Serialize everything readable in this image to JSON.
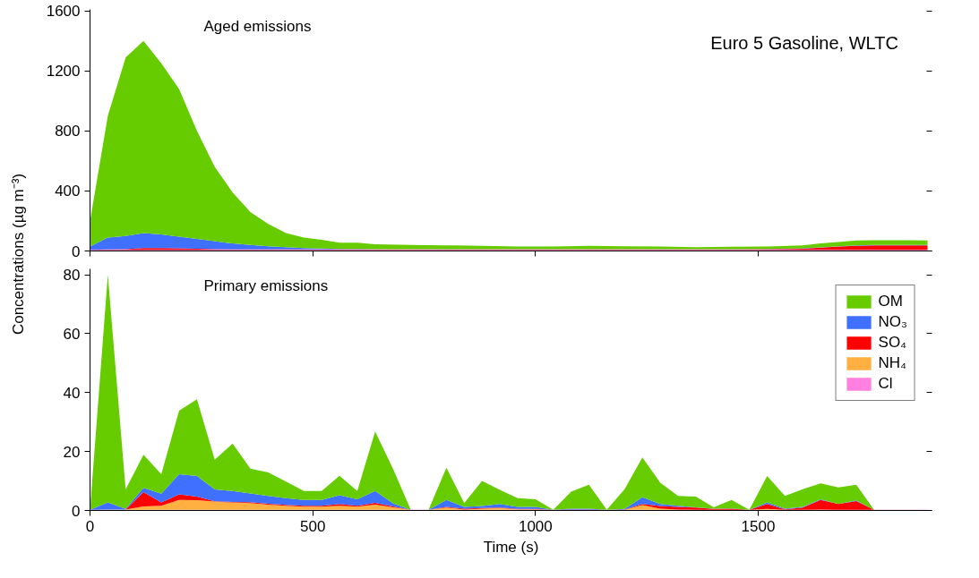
{
  "chart_data": [
    {
      "type": "area",
      "stacked": true,
      "ylabel": "Concentrations (µg m⁻³)",
      "tick_labels": "y",
      "legend": false,
      "grid": false,
      "x": [
        0,
        40,
        80,
        120,
        160,
        200,
        240,
        280,
        320,
        360,
        400,
        440,
        480,
        520,
        560,
        600,
        640,
        720,
        800,
        880,
        960,
        1040,
        1120,
        1200,
        1280,
        1360,
        1440,
        1520,
        1600,
        1640,
        1680,
        1720,
        1760,
        1800,
        1880
      ],
      "xlim": [
        0,
        1890
      ],
      "xticks": [
        0,
        500,
        1000,
        1500
      ],
      "ylim": [
        0,
        1610
      ],
      "yticks": [
        0,
        400,
        800,
        1200,
        1600
      ],
      "annotations": [
        "Aged emissions",
        "Euro 5 Gasoline, WLTC"
      ],
      "series": [
        {
          "color": "#ff80e0",
          "values": [
            8,
            8,
            8,
            8,
            8,
            8,
            8,
            8,
            8,
            8,
            8,
            8,
            8,
            8,
            8,
            8,
            8,
            8,
            8,
            8,
            8,
            8,
            8,
            8,
            8,
            8,
            8,
            8,
            8,
            8,
            8,
            8,
            8,
            8,
            8
          ]
        },
        {
          "color": "#ff0000",
          "values": [
            0,
            2,
            4,
            12,
            12,
            10,
            7,
            4,
            2,
            2,
            2,
            2,
            2,
            2,
            2,
            2,
            2,
            2,
            2,
            2,
            2,
            2,
            2,
            2,
            2,
            2,
            2,
            4,
            7,
            14,
            22,
            27,
            30,
            30,
            30
          ]
        },
        {
          "color": "#4070ff",
          "values": [
            22,
            80,
            88,
            100,
            90,
            77,
            65,
            53,
            40,
            30,
            22,
            15,
            10,
            6,
            4,
            3,
            2,
            2,
            2,
            2,
            2,
            2,
            2,
            2,
            2,
            2,
            2,
            2,
            3,
            2,
            2,
            2,
            2,
            2,
            2
          ]
        },
        {
          "color": "#66cc00",
          "values": [
            170,
            810,
            1190,
            1280,
            1140,
            985,
            720,
            495,
            340,
            220,
            148,
            95,
            70,
            59,
            41,
            42,
            33,
            28,
            26,
            23,
            18,
            18,
            23,
            20,
            18,
            13,
            16,
            16,
            20,
            26,
            28,
            33,
            32,
            32,
            30
          ]
        }
      ]
    },
    {
      "type": "area",
      "stacked": true,
      "xlabel": "Time (s)",
      "legend": "top right",
      "grid": false,
      "x": [
        0,
        40,
        80,
        120,
        160,
        200,
        240,
        280,
        320,
        360,
        400,
        440,
        480,
        520,
        560,
        600,
        640,
        680,
        720,
        760,
        800,
        840,
        880,
        920,
        960,
        1000,
        1040,
        1080,
        1120,
        1160,
        1200,
        1240,
        1280,
        1320,
        1360,
        1400,
        1440,
        1480,
        1520,
        1560,
        1600,
        1640,
        1680,
        1720,
        1760,
        1800,
        1840,
        1880
      ],
      "xlim": [
        0,
        1890
      ],
      "xticks": [
        0,
        500,
        1000,
        1500
      ],
      "ylim": [
        0,
        82
      ],
      "yticks": [
        0,
        20,
        40,
        60,
        80
      ],
      "annotations": [
        "Primary emissions"
      ],
      "series": [
        {
          "name": "Cl",
          "color": "#ff80e0",
          "values": [
            0.2,
            0.2,
            0.2,
            0.2,
            0.2,
            0.2,
            0.2,
            0.2,
            0.2,
            0.2,
            0.2,
            0.2,
            0.2,
            0.2,
            0.2,
            0.2,
            0.2,
            0.2,
            0.2,
            0.2,
            0.2,
            0.2,
            0.2,
            0.2,
            0.2,
            0.2,
            0.2,
            0.2,
            0.2,
            0.2,
            0.2,
            0.2,
            0.2,
            0.2,
            0.2,
            0.2,
            0.2,
            0.2,
            0.2,
            0.2,
            0.2,
            0.2,
            0.2,
            0.2,
            0.2,
            0.2,
            0.2,
            0.2
          ]
        },
        {
          "name": "NH₄",
          "color": "#ffb040",
          "values": [
            0,
            0.1,
            0.1,
            1.2,
            1.4,
            3.4,
            3.3,
            2.8,
            2.5,
            2.3,
            1.8,
            1.4,
            1.1,
            1.1,
            1.4,
            1.1,
            1.8,
            0.9,
            0,
            0,
            0.8,
            0.1,
            0.4,
            0.6,
            0.2,
            0.2,
            0,
            0,
            0,
            0,
            0,
            1.6,
            0.4,
            0.1,
            0,
            0,
            0,
            0,
            0.3,
            0,
            0,
            0.1,
            0,
            0,
            0,
            0,
            0,
            0
          ]
        },
        {
          "name": "SO₄",
          "color": "#ff0000",
          "values": [
            0,
            0,
            0,
            4.8,
            1.1,
            1.9,
            1.2,
            0.1,
            0.2,
            0.3,
            0.3,
            0.3,
            0.3,
            0.3,
            0.6,
            0.3,
            0.6,
            0.3,
            0,
            0,
            0.2,
            0.3,
            0.2,
            0.2,
            0.1,
            0.1,
            0,
            0.1,
            0.1,
            0,
            0.1,
            0.4,
            0.9,
            0.9,
            0.8,
            0.3,
            0.4,
            0,
            1.7,
            0.2,
            0.8,
            3.3,
            2.0,
            3.0,
            0,
            0,
            0,
            0
          ]
        },
        {
          "name": "NO₃",
          "color": "#4070ff",
          "values": [
            0,
            2.4,
            0.2,
            1.5,
            3.0,
            6.8,
            7.0,
            4.0,
            3.7,
            3.0,
            2.6,
            2.3,
            2.0,
            2.0,
            3.0,
            2.2,
            4.0,
            1.0,
            0,
            0,
            2.4,
            0.6,
            0.7,
            1.2,
            0.7,
            0.7,
            0,
            0.3,
            0.3,
            0,
            0.2,
            2.3,
            0.7,
            0.4,
            0.1,
            0.1,
            0.1,
            0,
            0.5,
            0.2,
            0.2,
            0.2,
            0,
            0.2,
            0,
            0,
            0,
            0
          ]
        },
        {
          "name": "OM",
          "color": "#66cc00",
          "values": [
            0,
            77.3,
            6.6,
            11.2,
            6.6,
            21.6,
            26.0,
            10.1,
            16.1,
            8.4,
            8.0,
            5.6,
            3.0,
            3.0,
            6.6,
            2.8,
            20.2,
            11.8,
            0,
            0,
            10.9,
            1.3,
            8.5,
            4.8,
            3.0,
            2.6,
            0,
            5.8,
            8.1,
            0,
            6.7,
            13.5,
            7.2,
            3.3,
            3.6,
            0.5,
            2.9,
            0,
            9.0,
            4.3,
            6.0,
            5.4,
            5.6,
            5.3,
            0,
            0,
            0,
            0
          ]
        }
      ]
    }
  ]
}
